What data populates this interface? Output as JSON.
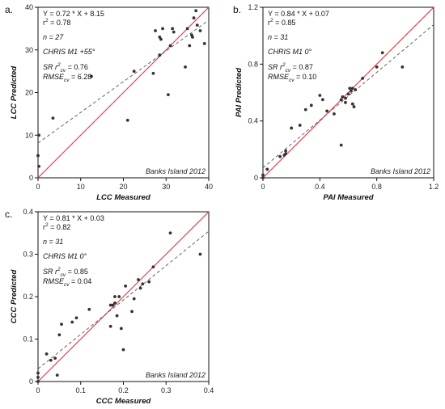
{
  "figure": {
    "panels": [
      {
        "panel_label": "a.",
        "stats": {
          "equation": "Y = 0.72 * X + 8.15",
          "r2_base": "r",
          "r2_sup": "2",
          "r2_val": " = 0.78",
          "n": "n = 27",
          "config": "CHRIS M1 +55°",
          "sr_base": "SR r",
          "sr_sup": "2",
          "sr_sub": "cv",
          "sr_val": " = 0.76",
          "rmse_base": "RMSE",
          "rmse_sub": "cv",
          "rmse_val": " = 6.28"
        },
        "site_label": "Banks Island 2012"
      },
      {
        "panel_label": "b.",
        "stats": {
          "equation": "Y = 0.84 * X + 0.07",
          "r2_base": "r",
          "r2_sup": "2",
          "r2_val": " = 0.85",
          "n": "n = 31",
          "config": "CHRIS M1 0°",
          "sr_base": "SR r",
          "sr_sup": "2",
          "sr_sub": "cv",
          "sr_val": " = 0.87",
          "rmse_base": "RMSE",
          "rmse_sub": "cv",
          "rmse_val": " = 0.10"
        },
        "site_label": "Banks Island 2012"
      },
      {
        "panel_label": "c.",
        "stats": {
          "equation": "Y = 0.81 * X + 0.03",
          "r2_base": "r",
          "r2_sup": "2",
          "r2_val": " = 0.82",
          "n": "n = 31",
          "config": "CHRIS M1 0°",
          "sr_base": "SR r",
          "sr_sup": "2",
          "sr_sub": "cv",
          "sr_val": " = 0.85",
          "rmse_base": "RMSE",
          "rmse_sub": "cv",
          "rmse_val": " = 0.04"
        },
        "site_label": "Banks Island 2012"
      }
    ]
  },
  "colors": {
    "one_to_one_line": "#e8474c",
    "regression_line": "#555555",
    "points": "#333333",
    "axes": "#111111"
  },
  "chart_data": [
    {
      "type": "scatter",
      "title": "",
      "xlabel": "LCC Measured",
      "ylabel": "LCC Predicted",
      "xlim": [
        0,
        40
      ],
      "ylim": [
        0,
        40
      ],
      "xticks": [
        "0",
        "10",
        "20",
        "30",
        "40"
      ],
      "yticks": [
        "0",
        "10",
        "20",
        "30",
        "40"
      ],
      "one_to_one": true,
      "fit": {
        "slope": 0.72,
        "intercept": 8.15
      },
      "points": [
        [
          0.2,
          10.0
        ],
        [
          0.0,
          5.2
        ],
        [
          0.2,
          2.7
        ],
        [
          3.5,
          14.0
        ],
        [
          12.5,
          23.8
        ],
        [
          21.0,
          13.5
        ],
        [
          22.5,
          25.0
        ],
        [
          27.0,
          24.5
        ],
        [
          27.5,
          34.5
        ],
        [
          28.5,
          33.0
        ],
        [
          28.8,
          32.5
        ],
        [
          28.5,
          28.8
        ],
        [
          29.2,
          35.0
        ],
        [
          30.5,
          19.5
        ],
        [
          31.0,
          31.0
        ],
        [
          31.5,
          35.0
        ],
        [
          31.8,
          34.2
        ],
        [
          34.5,
          26.0
        ],
        [
          35.0,
          35.0
        ],
        [
          36.0,
          33.5
        ],
        [
          36.2,
          33.0
        ],
        [
          36.5,
          37.5
        ],
        [
          37.0,
          39.2
        ],
        [
          37.3,
          35.8
        ],
        [
          38.0,
          34.5
        ],
        [
          39.0,
          31.5
        ],
        [
          35.5,
          31.0
        ]
      ]
    },
    {
      "type": "scatter",
      "title": "",
      "xlabel": "PAI Measured",
      "ylabel": "PAI Predicted",
      "xlim": [
        0,
        1.2
      ],
      "ylim": [
        0,
        1.2
      ],
      "xticks": [
        "0",
        "0.4",
        "0.8",
        "1.2"
      ],
      "yticks": [
        "0",
        "0.4",
        "0.8",
        "1.2"
      ],
      "one_to_one": true,
      "fit": {
        "slope": 0.84,
        "intercept": 0.07
      },
      "points": [
        [
          0.0,
          0.0
        ],
        [
          0.0,
          0.02
        ],
        [
          0.03,
          0.06
        ],
        [
          0.12,
          0.15
        ],
        [
          0.15,
          0.16
        ],
        [
          0.16,
          0.17
        ],
        [
          0.16,
          0.19
        ],
        [
          0.2,
          0.35
        ],
        [
          0.26,
          0.37
        ],
        [
          0.3,
          0.48
        ],
        [
          0.34,
          0.51
        ],
        [
          0.4,
          0.58
        ],
        [
          0.42,
          0.55
        ],
        [
          0.5,
          0.45
        ],
        [
          0.55,
          0.23
        ],
        [
          0.55,
          0.55
        ],
        [
          0.56,
          0.57
        ],
        [
          0.58,
          0.53
        ],
        [
          0.58,
          0.56
        ],
        [
          0.6,
          0.59
        ],
        [
          0.61,
          0.63
        ],
        [
          0.62,
          0.61
        ],
        [
          0.63,
          0.52
        ],
        [
          0.63,
          0.63
        ],
        [
          0.64,
          0.5
        ],
        [
          0.65,
          0.62
        ],
        [
          0.7,
          0.7
        ],
        [
          0.8,
          0.78
        ],
        [
          0.84,
          0.88
        ],
        [
          0.98,
          0.78
        ],
        [
          0.45,
          0.47
        ]
      ]
    },
    {
      "type": "scatter",
      "title": "",
      "xlabel": "CCC Measured",
      "ylabel": "CCC Predicted",
      "xlim": [
        0,
        0.4
      ],
      "ylim": [
        0,
        0.4
      ],
      "xticks": [
        "0",
        "0.1",
        "0.2",
        "0.3",
        "0.4"
      ],
      "yticks": [
        "0",
        "0.1",
        "0.2",
        "0.3",
        "0.4"
      ],
      "one_to_one": true,
      "fit": {
        "slope": 0.81,
        "intercept": 0.03
      },
      "points": [
        [
          0.0,
          0.0
        ],
        [
          0.0,
          0.01
        ],
        [
          0.0,
          0.02
        ],
        [
          0.02,
          0.065
        ],
        [
          0.03,
          0.05
        ],
        [
          0.04,
          0.055
        ],
        [
          0.045,
          0.015
        ],
        [
          0.05,
          0.11
        ],
        [
          0.055,
          0.135
        ],
        [
          0.08,
          0.14
        ],
        [
          0.09,
          0.15
        ],
        [
          0.12,
          0.17
        ],
        [
          0.17,
          0.13
        ],
        [
          0.17,
          0.18
        ],
        [
          0.175,
          0.18
        ],
        [
          0.18,
          0.185
        ],
        [
          0.185,
          0.155
        ],
        [
          0.19,
          0.2
        ],
        [
          0.195,
          0.125
        ],
        [
          0.2,
          0.075
        ],
        [
          0.205,
          0.225
        ],
        [
          0.22,
          0.165
        ],
        [
          0.225,
          0.195
        ],
        [
          0.235,
          0.24
        ],
        [
          0.24,
          0.22
        ],
        [
          0.245,
          0.23
        ],
        [
          0.26,
          0.235
        ],
        [
          0.27,
          0.27
        ],
        [
          0.31,
          0.35
        ],
        [
          0.38,
          0.3
        ],
        [
          0.18,
          0.2
        ]
      ]
    }
  ]
}
